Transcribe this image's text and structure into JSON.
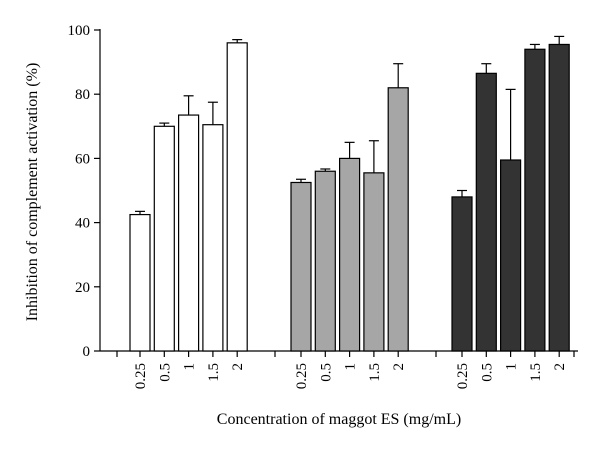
{
  "chart_data": {
    "type": "bar",
    "xlabel": "Concentration of maggot ES (mg/mL)",
    "ylabel": "Inhibition of complement activation (%)",
    "ylim": [
      0,
      100
    ],
    "yticks": [
      0,
      20,
      40,
      60,
      80,
      100
    ],
    "categories": [
      "0.25",
      "0.5",
      "1",
      "1.5",
      "2"
    ],
    "grid": false,
    "legend": "none",
    "groups": [
      {
        "fill": "#ffffff",
        "values": [
          42.5,
          70,
          73.5,
          70.5,
          96
        ],
        "errors": [
          1,
          1,
          6,
          7,
          1
        ]
      },
      {
        "fill": "#a6a6a6",
        "values": [
          52.5,
          56,
          60,
          55.5,
          82
        ],
        "errors": [
          1,
          0.7,
          5,
          10,
          7.5
        ]
      },
      {
        "fill": "#333333",
        "values": [
          48,
          86.5,
          59.5,
          94,
          95.5
        ],
        "errors": [
          2,
          3,
          22,
          1.5,
          2.5
        ]
      }
    ]
  }
}
